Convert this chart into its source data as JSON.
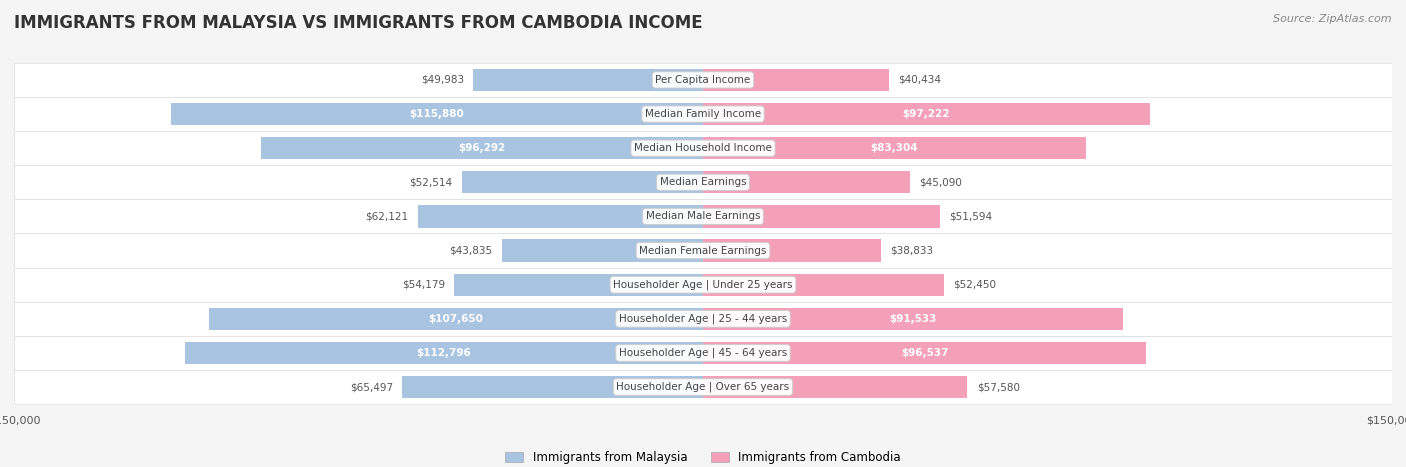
{
  "title": "IMMIGRANTS FROM MALAYSIA VS IMMIGRANTS FROM CAMBODIA INCOME",
  "source": "Source: ZipAtlas.com",
  "categories": [
    "Per Capita Income",
    "Median Family Income",
    "Median Household Income",
    "Median Earnings",
    "Median Male Earnings",
    "Median Female Earnings",
    "Householder Age | Under 25 years",
    "Householder Age | 25 - 44 years",
    "Householder Age | 45 - 64 years",
    "Householder Age | Over 65 years"
  ],
  "malaysia_values": [
    49983,
    115880,
    96292,
    52514,
    62121,
    43835,
    54179,
    107650,
    112796,
    65497
  ],
  "cambodia_values": [
    40434,
    97222,
    83304,
    45090,
    51594,
    38833,
    52450,
    91533,
    96537,
    57580
  ],
  "malaysia_labels": [
    "$49,983",
    "$115,880",
    "$96,292",
    "$52,514",
    "$62,121",
    "$43,835",
    "$54,179",
    "$107,650",
    "$112,796",
    "$65,497"
  ],
  "cambodia_labels": [
    "$40,434",
    "$97,222",
    "$83,304",
    "$45,090",
    "$51,594",
    "$38,833",
    "$52,450",
    "$91,533",
    "$96,537",
    "$57,580"
  ],
  "malaysia_color": "#a8c4e0",
  "cambodia_color": "#f4a0b8",
  "malaysia_label_color_threshold": 80000,
  "legend_malaysia": "Immigrants from Malaysia",
  "legend_cambodia": "Immigrants from Cambodia",
  "x_max": 150000,
  "background_color": "#f5f5f5",
  "row_bg_color": "#ffffff",
  "row_alt_bg_color": "#f0f0f0"
}
